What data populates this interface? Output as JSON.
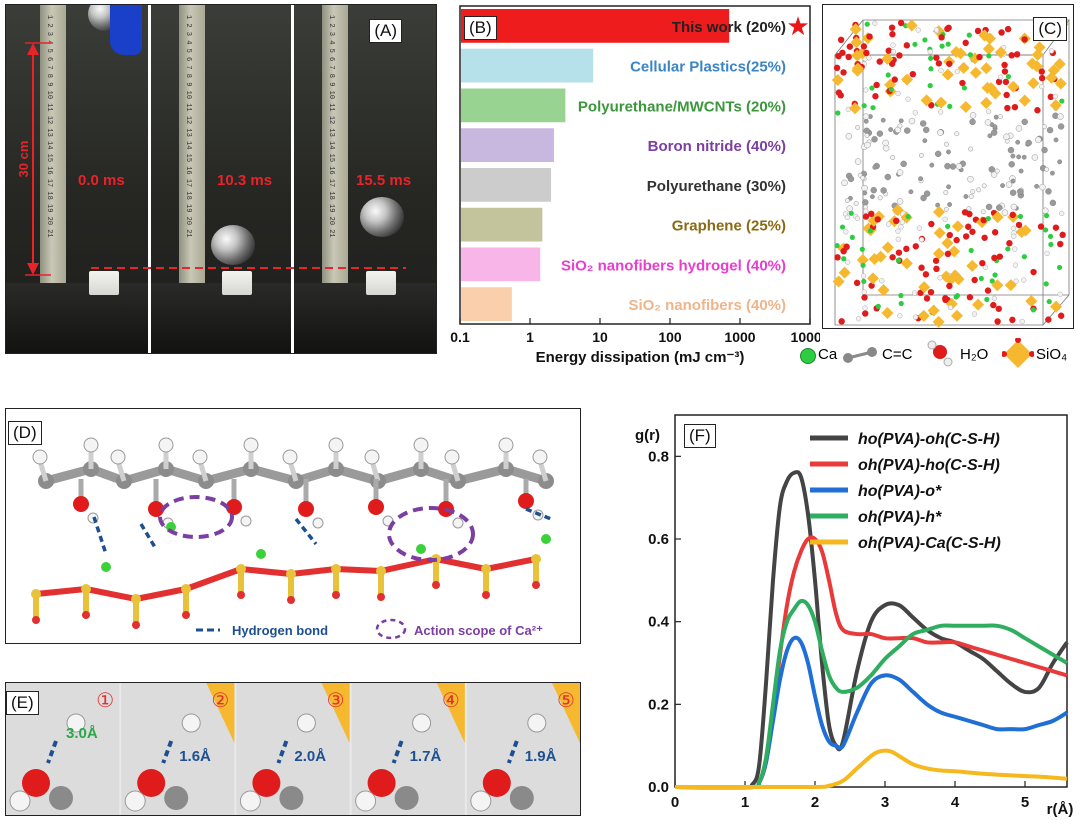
{
  "panels": {
    "a": {
      "label": "(A)",
      "height_label": "30 cm",
      "times": [
        "0.0 ms",
        "10.3 ms",
        "15.5 ms"
      ]
    },
    "b": {
      "label": "(B)"
    },
    "c": {
      "label": "(C)",
      "legend": [
        {
          "text": "Ca",
          "color": "#2ecc40"
        },
        {
          "text": "C=C",
          "color": "#8a8a8a"
        },
        {
          "text": "H₂O",
          "color": "#e01b1b"
        },
        {
          "text": "SiO₄",
          "color": "#f5b82e"
        }
      ]
    },
    "d": {
      "label": "(D)",
      "legend_hbond": "Hydrogen bond",
      "legend_ca": "Action scope of Ca²⁺"
    },
    "e": {
      "label": "(E)",
      "items": [
        {
          "num": "①",
          "dist": "3.0Å"
        },
        {
          "num": "②",
          "dist": "1.6Å"
        },
        {
          "num": "③",
          "dist": "2.0Å"
        },
        {
          "num": "④",
          "dist": "1.7Å"
        },
        {
          "num": "⑤",
          "dist": "1.9Å"
        }
      ]
    },
    "f": {
      "label": "(F)"
    }
  },
  "chart_data": [
    {
      "type": "bar",
      "orientation": "horizontal",
      "xscale": "log",
      "xlabel": "Energy dissipation (mJ cm⁻³)",
      "xlim": [
        0.1,
        10000
      ],
      "xticks": [
        "0.1",
        "1",
        "10",
        "100",
        "1000",
        "10000"
      ],
      "categories": [
        "This work (20%)",
        "Cellular Plastics(25%)",
        "Polyurethane/MWCNTs (20%)",
        "Boron nitride (40%)",
        "Polyurethane (30%)",
        "Graphene (25%)",
        "SiO₂ nanofibers hydrogel (40%)",
        "SiO₂ nanofibers (40%)"
      ],
      "values": [
        700,
        8,
        3.2,
        2.2,
        2.0,
        1.5,
        1.4,
        0.55
      ],
      "colors": [
        "#ee1c1c",
        "#b6e1ea",
        "#99d391",
        "#c8b8e0",
        "#cccccc",
        "#c3c39c",
        "#f8b5e8",
        "#f9cfac"
      ],
      "label_colors": [
        "#222222",
        "#3a85c6",
        "#3c963c",
        "#7b3ea1",
        "#333333",
        "#8a6a14",
        "#ea3cd0",
        "#f0b488"
      ],
      "annotations": [
        "★"
      ]
    },
    {
      "type": "line",
      "xlabel": "r(Å)",
      "ylabel": "g(r)",
      "xlim": [
        0,
        5.6
      ],
      "ylim": [
        0,
        0.9
      ],
      "xticks": [
        "0",
        "1",
        "2",
        "3",
        "4",
        "5"
      ],
      "yticks": [
        "0.0",
        "0.2",
        "0.4",
        "0.6",
        "0.8"
      ],
      "legend_position": "top-right",
      "series": [
        {
          "name": "ho(PVA)-oh(C-S-H)",
          "color": "#444444",
          "x": [
            0,
            1.0,
            1.1,
            1.2,
            1.3,
            1.4,
            1.5,
            1.6,
            1.7,
            1.8,
            1.9,
            2.0,
            2.1,
            2.2,
            2.3,
            2.4,
            2.6,
            2.8,
            3.0,
            3.2,
            3.4,
            3.6,
            3.8,
            4.0,
            4.2,
            4.4,
            4.6,
            4.8,
            5.0,
            5.2,
            5.4,
            5.6
          ],
          "y": [
            0,
            0,
            0.005,
            0.05,
            0.25,
            0.5,
            0.68,
            0.74,
            0.76,
            0.75,
            0.66,
            0.5,
            0.3,
            0.15,
            0.1,
            0.11,
            0.28,
            0.4,
            0.44,
            0.44,
            0.41,
            0.38,
            0.36,
            0.35,
            0.33,
            0.31,
            0.28,
            0.25,
            0.23,
            0.24,
            0.3,
            0.35
          ]
        },
        {
          "name": "oh(PVA)-ho(C-S-H)",
          "color": "#e83a3a",
          "x": [
            0,
            1.1,
            1.2,
            1.3,
            1.4,
            1.5,
            1.6,
            1.7,
            1.8,
            1.9,
            2.0,
            2.1,
            2.2,
            2.3,
            2.4,
            2.6,
            2.8,
            3.0,
            3.2,
            3.4,
            3.6,
            3.8,
            4.0,
            4.2,
            4.4,
            4.6,
            4.8,
            5.0,
            5.2,
            5.4,
            5.6
          ],
          "y": [
            0,
            0,
            0.01,
            0.06,
            0.18,
            0.32,
            0.44,
            0.52,
            0.57,
            0.6,
            0.6,
            0.57,
            0.5,
            0.42,
            0.38,
            0.37,
            0.37,
            0.36,
            0.36,
            0.36,
            0.35,
            0.35,
            0.35,
            0.34,
            0.33,
            0.32,
            0.31,
            0.3,
            0.29,
            0.28,
            0.27
          ]
        },
        {
          "name": "ho(PVA)-o*",
          "color": "#1f6fd6",
          "x": [
            0,
            1.1,
            1.2,
            1.3,
            1.4,
            1.5,
            1.6,
            1.7,
            1.8,
            1.9,
            2.0,
            2.1,
            2.2,
            2.3,
            2.4,
            2.6,
            2.8,
            3.0,
            3.2,
            3.4,
            3.6,
            3.8,
            4.0,
            4.2,
            4.4,
            4.6,
            4.8,
            5.0,
            5.2,
            5.4,
            5.6
          ],
          "y": [
            0,
            0,
            0.01,
            0.06,
            0.16,
            0.26,
            0.33,
            0.36,
            0.35,
            0.3,
            0.22,
            0.15,
            0.11,
            0.1,
            0.1,
            0.18,
            0.25,
            0.27,
            0.26,
            0.23,
            0.2,
            0.18,
            0.17,
            0.16,
            0.15,
            0.14,
            0.14,
            0.14,
            0.15,
            0.16,
            0.18
          ]
        },
        {
          "name": "oh(PVA)-h*",
          "color": "#2eae5e",
          "x": [
            0,
            1.1,
            1.2,
            1.3,
            1.4,
            1.5,
            1.6,
            1.7,
            1.8,
            1.9,
            2.0,
            2.1,
            2.2,
            2.3,
            2.4,
            2.6,
            2.8,
            3.0,
            3.2,
            3.4,
            3.6,
            3.8,
            4.0,
            4.2,
            4.4,
            4.6,
            4.8,
            5.0,
            5.2,
            5.4,
            5.6
          ],
          "y": [
            0,
            0,
            0.01,
            0.07,
            0.2,
            0.33,
            0.4,
            0.43,
            0.45,
            0.44,
            0.4,
            0.33,
            0.27,
            0.24,
            0.23,
            0.24,
            0.27,
            0.31,
            0.34,
            0.37,
            0.38,
            0.39,
            0.39,
            0.39,
            0.39,
            0.39,
            0.38,
            0.36,
            0.34,
            0.32,
            0.3
          ]
        },
        {
          "name": "oh(PVA)-Ca(C-S-H)",
          "color": "#f5b81f",
          "x": [
            0,
            1.0,
            2.0,
            2.2,
            2.4,
            2.6,
            2.8,
            2.9,
            3.0,
            3.1,
            3.2,
            3.4,
            3.6,
            3.8,
            4.0,
            4.4,
            4.8,
            5.2,
            5.6
          ],
          "y": [
            0,
            0,
            0,
            0.003,
            0.015,
            0.045,
            0.075,
            0.085,
            0.088,
            0.085,
            0.075,
            0.055,
            0.045,
            0.04,
            0.038,
            0.032,
            0.028,
            0.025,
            0.02
          ]
        }
      ]
    }
  ]
}
